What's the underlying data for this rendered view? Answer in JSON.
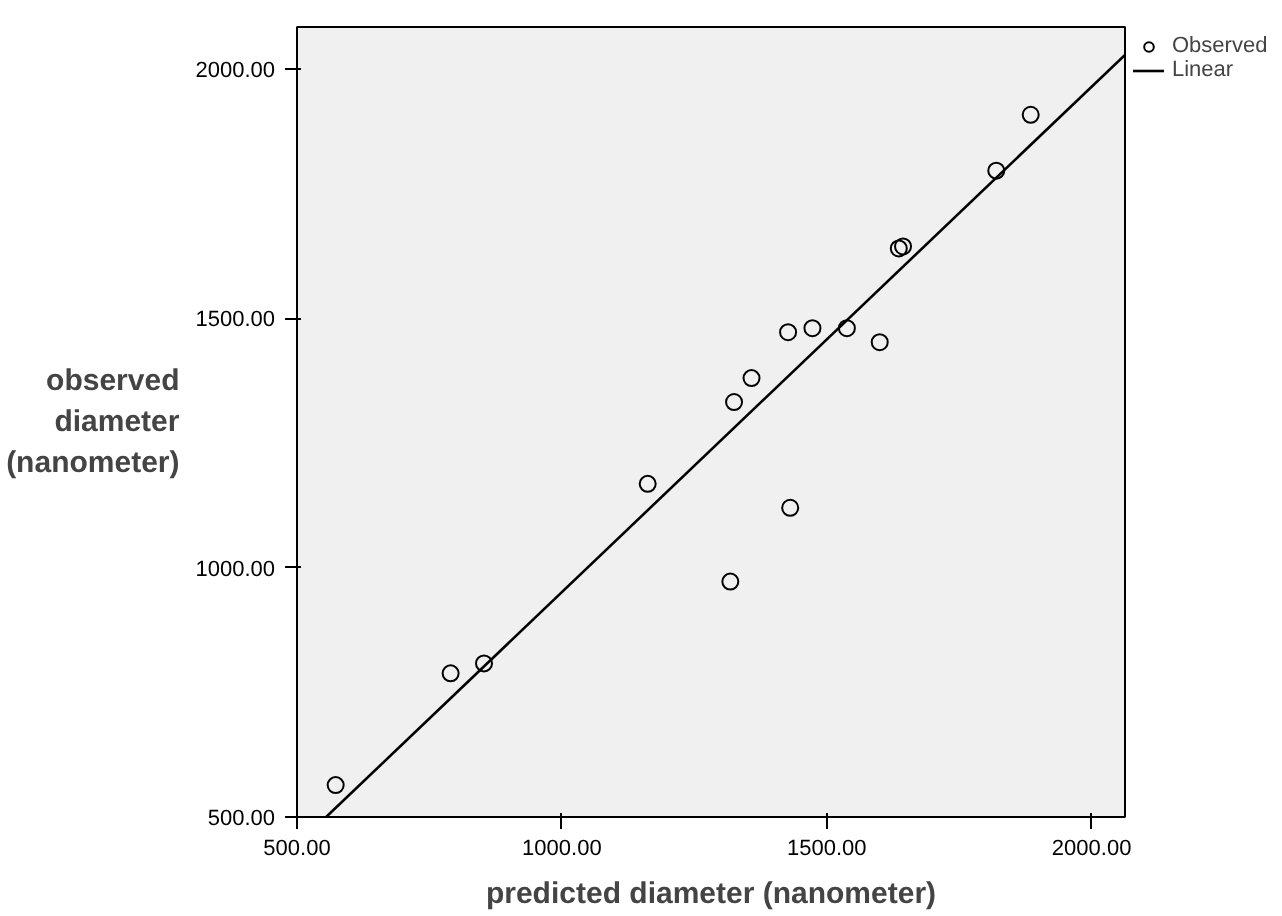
{
  "chart_data": {
    "type": "scatter",
    "xlabel": "predicted diameter (nanometer)",
    "ylabel": "observed diameter (nanometer)",
    "xlim": [
      500,
      2063
    ],
    "ylim": [
      500,
      2084
    ],
    "xticks": [
      {
        "value": 500,
        "label": "500.00"
      },
      {
        "value": 1000,
        "label": "1000.00"
      },
      {
        "value": 1500,
        "label": "1500.00"
      },
      {
        "value": 2000,
        "label": "2000.00"
      }
    ],
    "yticks": [
      {
        "value": 500,
        "label": "500.00"
      },
      {
        "value": 1000,
        "label": "1000.00"
      },
      {
        "value": 1500,
        "label": "1500.00"
      },
      {
        "value": 2000,
        "label": "2000.00"
      }
    ],
    "grid": false,
    "legend": "top right",
    "series": [
      {
        "name": "Observed",
        "marker": "circle",
        "color": "#000000",
        "x": [
          573,
          790,
          853,
          1162,
          1318,
          1325,
          1358,
          1427,
          1431,
          1473,
          1538,
          1600,
          1636,
          1644,
          1820,
          1885
        ],
        "values": [
          564,
          788,
          808,
          1168,
          972,
          1332,
          1380,
          1472,
          1120,
          1480,
          1480,
          1452,
          1640,
          1644,
          1796,
          1908
        ]
      },
      {
        "name": "Linear",
        "type": "line",
        "color": "#000000",
        "line_style": "solid",
        "x": [
          555,
          2063
        ],
        "values": [
          500,
          2028
        ]
      }
    ]
  }
}
